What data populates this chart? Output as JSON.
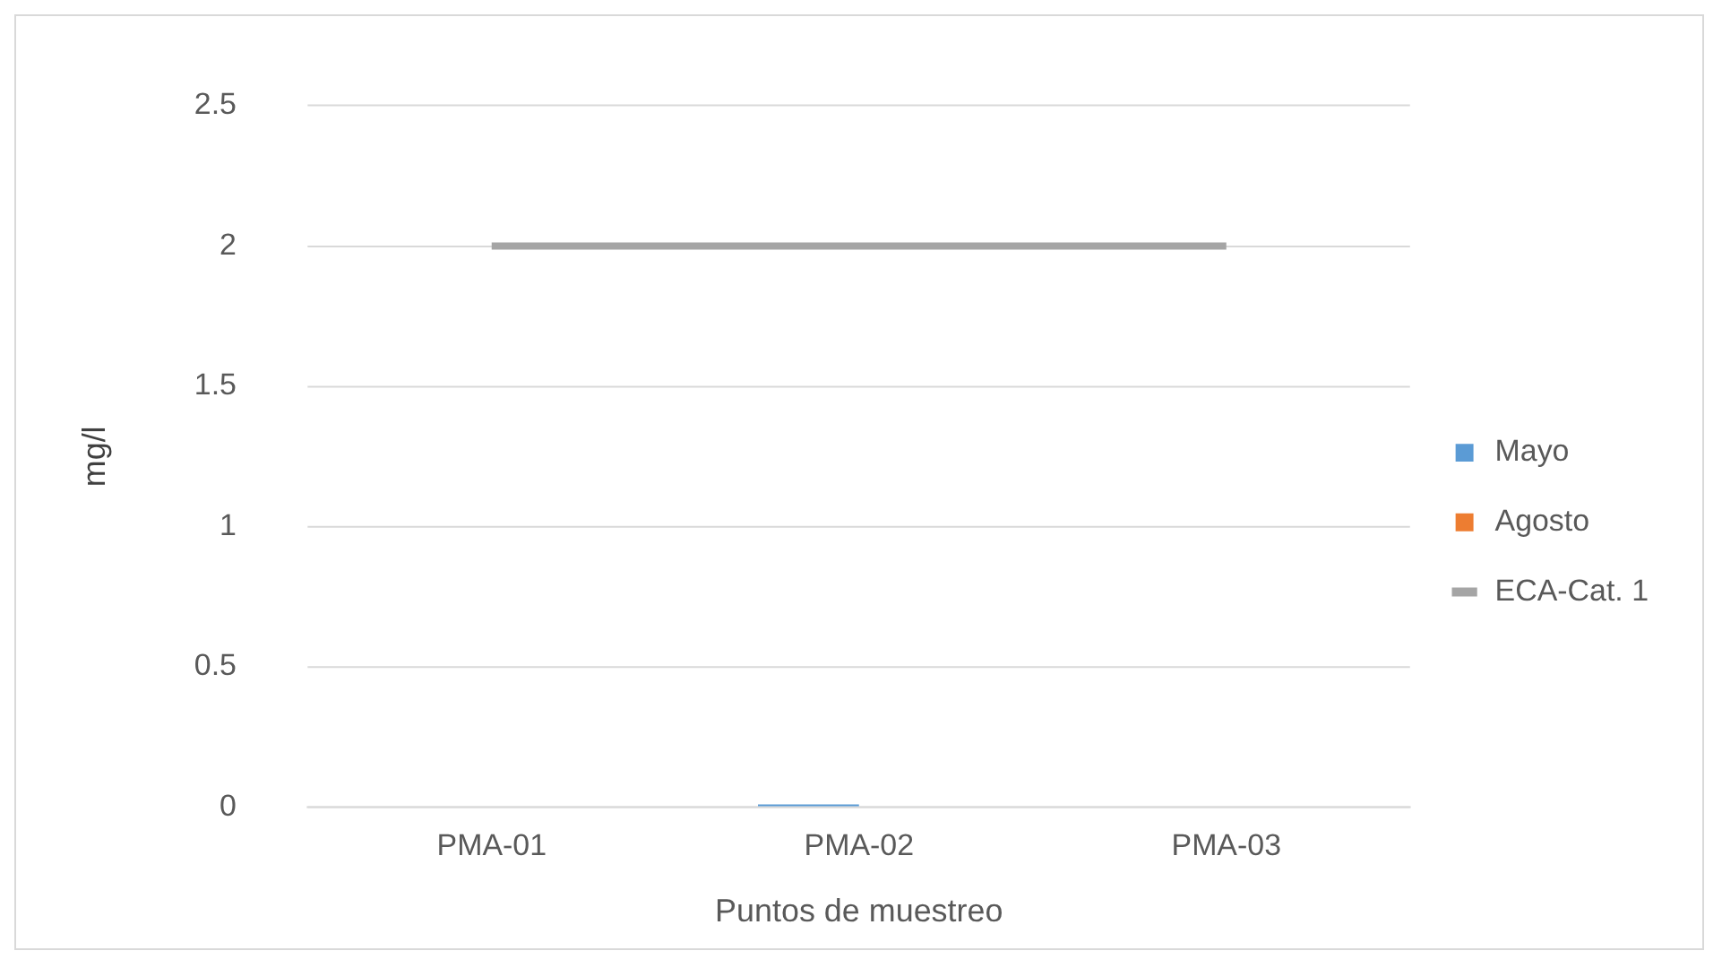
{
  "chart_data": {
    "type": "bar",
    "xlabel": "Puntos de muestreo",
    "ylabel": "mg/l",
    "categories": [
      "PMA-01",
      "PMA-02",
      "PMA-03"
    ],
    "series": [
      {
        "name": "Mayo",
        "color": "#5b9bd5",
        "values": [
          0,
          0.01,
          0
        ]
      },
      {
        "name": "Agosto",
        "color": "#ed7d31",
        "values": [
          0,
          0,
          0
        ]
      },
      {
        "name": "ECA-Cat. 1",
        "type": "line",
        "color": "#a5a5a5",
        "values": [
          2,
          2,
          2
        ]
      }
    ],
    "ylim": [
      0,
      2.5
    ],
    "yticks": [
      0,
      0.5,
      1,
      1.5,
      2,
      2.5
    ],
    "grid": "y",
    "legend": "right",
    "marker": "none",
    "line_style": "solid"
  }
}
